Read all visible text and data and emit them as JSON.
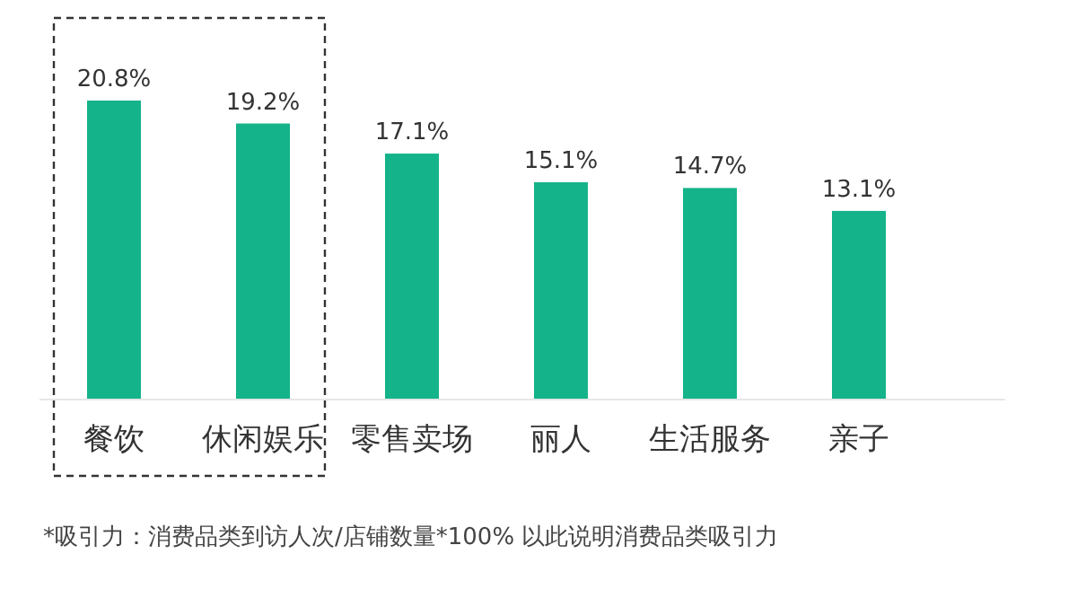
{
  "chart_data": {
    "type": "bar",
    "categories": [
      "餐饮",
      "休闲娱乐",
      "零售卖场",
      "丽人",
      "生活服务",
      "亲子"
    ],
    "values": [
      20.8,
      19.2,
      17.1,
      15.1,
      14.7,
      13.1
    ],
    "value_labels": [
      "20.8%",
      "19.2%",
      "17.1%",
      "15.1%",
      "14.7%",
      "13.1%"
    ],
    "color": "#14b38a",
    "annotations": [
      "*吸引力：消费品类到访人次/店铺数量*100%  以此说明消费品类吸引力"
    ]
  }
}
